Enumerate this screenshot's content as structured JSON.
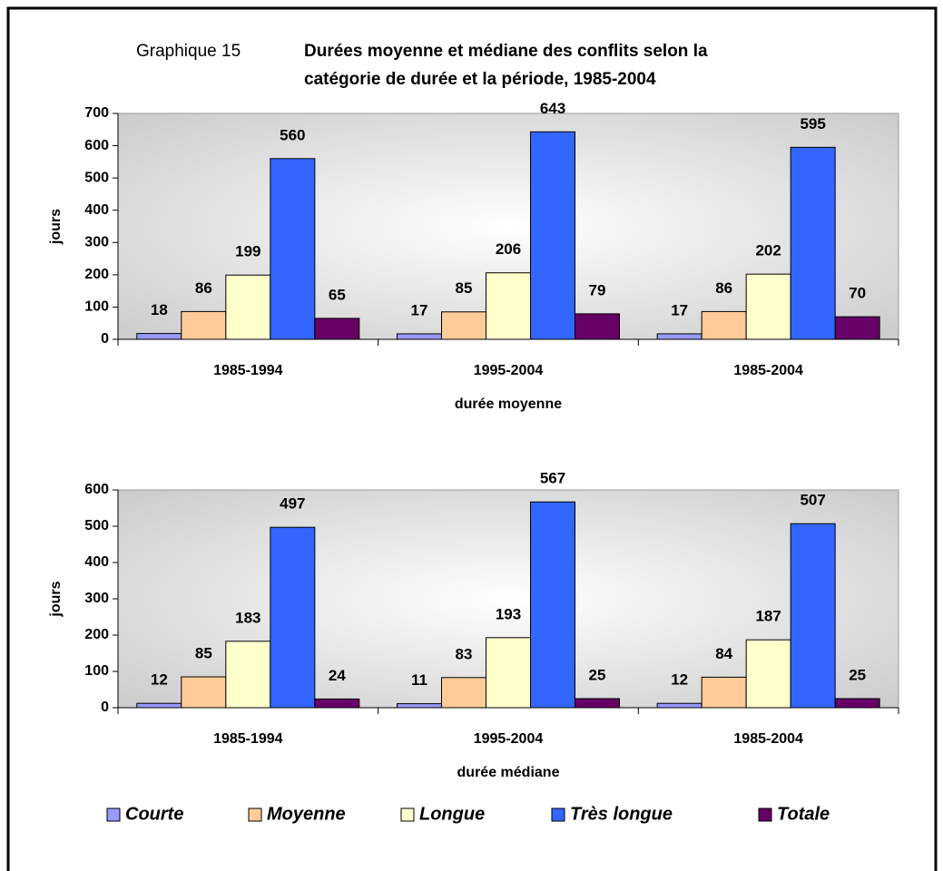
{
  "header": {
    "number": "Graphique 15",
    "title": [
      "Durées moyenne et médiane des conflits selon la",
      "catégorie de durée et la période, 1985-2004"
    ]
  },
  "chart_data": [
    {
      "type": "bar",
      "categories": [
        "1985-1994",
        "1995-2004",
        "1985-2004"
      ],
      "xlabel": "durée moyenne",
      "ylabel": "jours",
      "ylim": [
        0,
        700
      ],
      "yticks": [
        0,
        100,
        200,
        300,
        400,
        500,
        600,
        700
      ],
      "series": [
        {
          "color": "#9999ff",
          "values": [
            18,
            17,
            17
          ]
        },
        {
          "color": "#ffcc99",
          "values": [
            86,
            85,
            86
          ]
        },
        {
          "color": "#ffffcc",
          "values": [
            199,
            206,
            202
          ]
        },
        {
          "color": "#3366ff",
          "values": [
            560,
            643,
            595
          ]
        },
        {
          "color": "#660066",
          "values": [
            65,
            79,
            70
          ]
        }
      ]
    },
    {
      "type": "bar",
      "categories": [
        "1985-1994",
        "1995-2004",
        "1985-2004"
      ],
      "xlabel": "durée médiane",
      "ylabel": "jours",
      "ylim": [
        0,
        600
      ],
      "yticks": [
        0,
        100,
        200,
        300,
        400,
        500,
        600
      ],
      "series": [
        {
          "name": "Courte",
          "color": "#9999ff",
          "values": [
            12,
            11,
            12
          ]
        },
        {
          "name": "Moyenne",
          "color": "#ffcc99",
          "values": [
            85,
            83,
            84
          ]
        },
        {
          "name": "Longue",
          "color": "#ffffcc",
          "values": [
            183,
            193,
            187
          ]
        },
        {
          "name": "Très longue",
          "color": "#3366ff",
          "values": [
            497,
            567,
            507
          ]
        },
        {
          "name": "Totale",
          "color": "#660066",
          "values": [
            24,
            25,
            25
          ]
        }
      ]
    }
  ]
}
